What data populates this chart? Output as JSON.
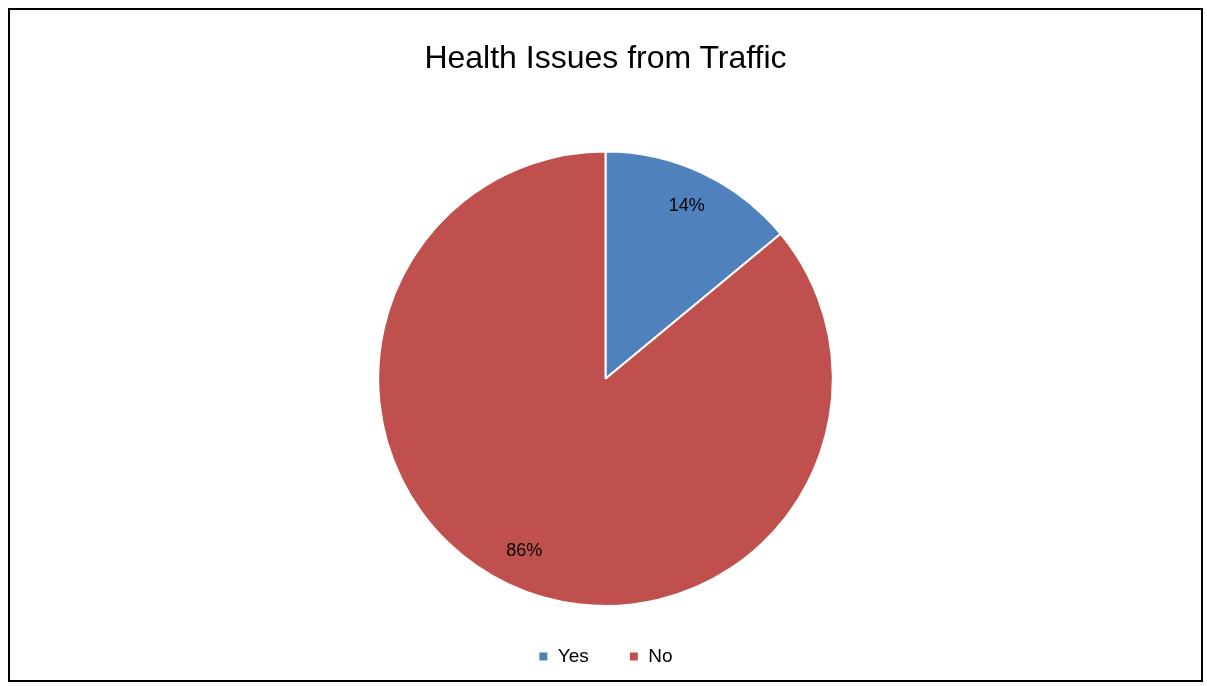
{
  "chart_data": {
    "type": "pie",
    "title": "Health Issues from Traffic",
    "categories": [
      "Yes",
      "No"
    ],
    "values": [
      14,
      86
    ],
    "colors": [
      "#4f81bd",
      "#c0504d"
    ],
    "value_labels": [
      "14%",
      "86%"
    ],
    "legend": "bottom"
  }
}
